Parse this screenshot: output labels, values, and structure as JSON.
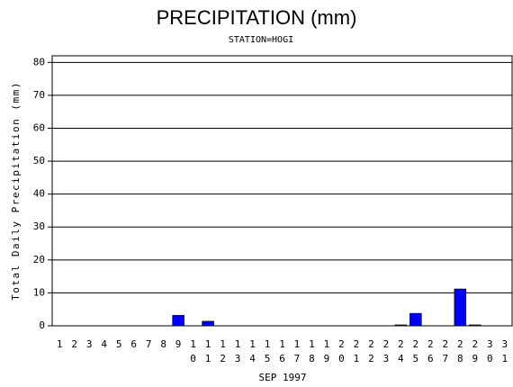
{
  "chart_data": {
    "type": "bar",
    "title": "PRECIPITATION (mm)",
    "subtitle": "STATION=HOGI",
    "x_label": "SEP 1997",
    "y_label": "Total Daily Precipitation (mm)",
    "categories": [
      "1",
      "2",
      "3",
      "4",
      "5",
      "6",
      "7",
      "8",
      "9",
      "10",
      "11",
      "12",
      "13",
      "14",
      "15",
      "16",
      "17",
      "18",
      "19",
      "20",
      "21",
      "22",
      "23",
      "24",
      "25",
      "26",
      "27",
      "28",
      "29",
      "30",
      "31"
    ],
    "values": [
      0,
      0,
      0,
      0,
      0,
      0,
      0,
      0,
      3.2,
      0,
      1.4,
      0,
      0,
      0,
      0,
      0,
      0,
      0,
      0,
      0,
      0,
      0,
      0,
      0.3,
      3.8,
      0,
      0,
      11.2,
      0.3,
      0,
      0
    ],
    "color": "#0000ff",
    "ylim": [
      0,
      82
    ],
    "yticks": [
      0,
      10,
      20,
      30,
      40,
      50,
      60,
      70,
      80
    ],
    "grid": true
  }
}
